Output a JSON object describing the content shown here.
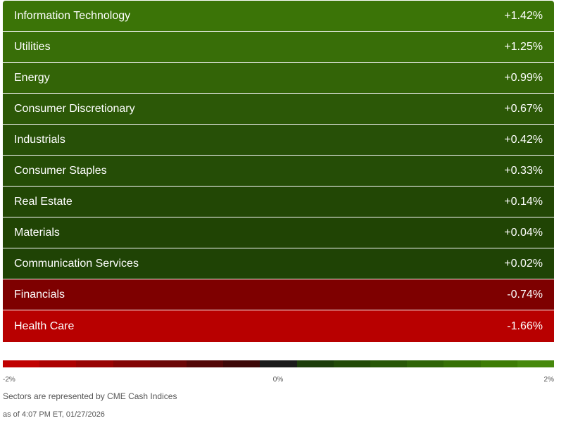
{
  "sectors": [
    {
      "name": "Information Technology",
      "change": "+1.42%",
      "color": "#3b7407"
    },
    {
      "name": "Utilities",
      "change": "+1.25%",
      "color": "#386e08"
    },
    {
      "name": "Energy",
      "change": "+0.99%",
      "color": "#336407"
    },
    {
      "name": "Consumer Discretionary",
      "change": "+0.67%",
      "color": "#2c5807"
    },
    {
      "name": "Industrials",
      "change": "+0.42%",
      "color": "#275007"
    },
    {
      "name": "Consumer Staples",
      "change": "+0.33%",
      "color": "#254d06"
    },
    {
      "name": "Real Estate",
      "change": "+0.14%",
      "color": "#224705"
    },
    {
      "name": "Materials",
      "change": "+0.04%",
      "color": "#204404"
    },
    {
      "name": "Communication Services",
      "change": "+0.02%",
      "color": "#1f4305"
    },
    {
      "name": "Financials",
      "change": "-0.74%",
      "color": "#7e0000"
    },
    {
      "name": "Health Care",
      "change": "-1.66%",
      "color": "#b80000"
    }
  ],
  "legend": {
    "colors": [
      "#c00000",
      "#ac0000",
      "#980303",
      "#830505",
      "#6b0707",
      "#530808",
      "#3d0808",
      "#1a1a1a",
      "#1c3d0a",
      "#224a08",
      "#285707",
      "#2f6407",
      "#367006",
      "#3d7c05",
      "#46880c"
    ],
    "min_label": "-2%",
    "mid_label": "0%",
    "max_label": "2%"
  },
  "footer": {
    "source_note": "Sectors are represented by CME Cash Indices",
    "timestamp": "as of 4:07 PM ET, 01/27/2026"
  }
}
